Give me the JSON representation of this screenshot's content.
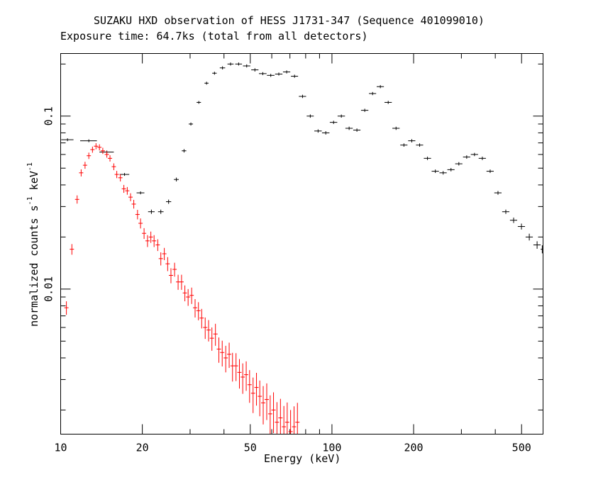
{
  "chart_data": {
    "type": "scatter",
    "title": "SUZAKU HXD observation of HESS J1731-347 (Sequence 401099010)",
    "subtitle": "Exposure time: 64.7ks (total from all detectors)",
    "xlabel": "Energy (keV)",
    "ylabel_parts": [
      "normalized counts s",
      "-1",
      " keV",
      "-1"
    ],
    "xscale": "log",
    "yscale": "log",
    "xlim": [
      10,
      600
    ],
    "ylim": [
      0.00145,
      0.23
    ],
    "x_ticks": [
      10,
      20,
      50,
      100,
      200,
      500
    ],
    "x_tick_labels": [
      "10",
      "20",
      "50",
      "100",
      "200",
      "500"
    ],
    "y_ticks": [
      0.01,
      0.1
    ],
    "y_tick_labels": [
      "0.01",
      "0.1"
    ],
    "grid": false,
    "series": [
      {
        "color": "#000000",
        "x": [
          10.6,
          12.7,
          14.8,
          17.2,
          19.7,
          21.6,
          23.4,
          25.0,
          26.7,
          28.5,
          30.2,
          32.3,
          34.5,
          36.9,
          39.5,
          42.3,
          45.3,
          48.5,
          52.0,
          55.6,
          59.5,
          63.7,
          68.1,
          72.8,
          77.9,
          83.2,
          88.9,
          94.9,
          101.4,
          108.3,
          115.7,
          123.6,
          132.1,
          141.2,
          150.8,
          161.2,
          172.3,
          184.2,
          196.9,
          210.5,
          225.0,
          240.5,
          257.0,
          274.7,
          293.6,
          313.8,
          335.3,
          358.4,
          383.0,
          409.3,
          437.4,
          467.4,
          499.5,
          533.8,
          570.4,
          596.0
        ],
        "y": [
          0.073,
          0.072,
          0.062,
          0.046,
          0.036,
          0.028,
          0.028,
          0.032,
          0.043,
          0.063,
          0.09,
          0.12,
          0.155,
          0.177,
          0.19,
          0.2,
          0.2,
          0.195,
          0.185,
          0.176,
          0.172,
          0.175,
          0.18,
          0.17,
          0.13,
          0.1,
          0.082,
          0.08,
          0.092,
          0.1,
          0.085,
          0.083,
          0.108,
          0.135,
          0.148,
          0.12,
          0.085,
          0.068,
          0.072,
          0.068,
          0.057,
          0.048,
          0.047,
          0.049,
          0.053,
          0.058,
          0.06,
          0.057,
          0.048,
          0.036,
          0.028,
          0.025,
          0.023,
          0.02,
          0.018,
          0.017
        ],
        "xerr_lo": [
          0.55,
          0.9,
          0.9,
          0.7,
          0.65,
          0.6,
          0.55,
          0.55,
          0.55,
          0.55,
          0.55,
          0.6,
          0.6,
          0.7,
          0.9,
          1.1,
          1.3,
          1.5,
          1.6,
          1.8,
          1.9,
          2.0,
          2.1,
          2.2,
          2.4,
          2.5,
          2.8,
          3.0,
          3.2,
          3.4,
          3.6,
          3.8,
          4.1,
          4.3,
          4.6,
          5.0,
          5.3,
          5.6,
          6.0,
          6.4,
          6.9,
          7.4,
          7.9,
          8.4,
          9.0,
          9.6,
          10.3,
          11.0,
          11.8,
          12.6,
          13.4,
          14.3,
          15.3,
          16.4,
          17.5,
          8.0
        ],
        "yerr": [
          0.0008,
          0.0008,
          0.0008,
          0.0008,
          0.0007,
          0.0008,
          0.0008,
          0.0009,
          0.0011,
          0.0014,
          0.0018,
          0.0023,
          0.003,
          0.0035,
          0.004,
          0.004,
          0.004,
          0.004,
          0.004,
          0.0035,
          0.0035,
          0.0035,
          0.0036,
          0.0035,
          0.0028,
          0.0022,
          0.0018,
          0.0018,
          0.002,
          0.0021,
          0.0019,
          0.0018,
          0.0023,
          0.0028,
          0.003,
          0.0025,
          0.0018,
          0.0015,
          0.0016,
          0.0015,
          0.0013,
          0.0011,
          0.0011,
          0.0011,
          0.0012,
          0.0013,
          0.0013,
          0.0013,
          0.0011,
          0.0009,
          0.0008,
          0.0009,
          0.0009,
          0.0009,
          0.0009,
          0.0009
        ]
      },
      {
        "color": "#ff0000",
        "x": [
          10.5,
          11.0,
          11.5,
          11.9,
          12.3,
          12.7,
          13.1,
          13.5,
          13.9,
          14.3,
          14.8,
          15.2,
          15.7,
          16.1,
          16.6,
          17.1,
          17.6,
          18.1,
          18.6,
          19.2,
          19.7,
          20.3,
          20.9,
          21.5,
          22.1,
          22.8,
          23.4,
          24.1,
          24.8,
          25.5,
          26.3,
          27.1,
          27.9,
          28.7,
          29.5,
          30.4,
          31.3,
          32.2,
          33.1,
          34.1,
          35.1,
          36.1,
          37.2,
          38.3,
          39.4,
          40.6,
          41.8,
          43.0,
          44.3,
          45.6,
          46.9,
          48.3,
          49.7,
          51.2,
          52.7,
          54.2,
          55.8,
          57.5,
          59.2,
          60.9,
          62.7,
          64.6,
          66.5,
          68.4,
          70.4,
          72.5,
          74.6
        ],
        "y": [
          0.0078,
          0.017,
          0.033,
          0.047,
          0.052,
          0.059,
          0.064,
          0.067,
          0.066,
          0.063,
          0.06,
          0.057,
          0.051,
          0.046,
          0.044,
          0.038,
          0.037,
          0.034,
          0.031,
          0.027,
          0.024,
          0.021,
          0.019,
          0.02,
          0.019,
          0.018,
          0.015,
          0.016,
          0.014,
          0.012,
          0.013,
          0.011,
          0.011,
          0.0095,
          0.009,
          0.0092,
          0.0078,
          0.0075,
          0.0068,
          0.006,
          0.0058,
          0.0052,
          0.0055,
          0.0045,
          0.0043,
          0.004,
          0.0042,
          0.0036,
          0.0036,
          0.0033,
          0.0031,
          0.0032,
          0.0028,
          0.0025,
          0.0027,
          0.0024,
          0.0022,
          0.0023,
          0.0019,
          0.002,
          0.0017,
          0.0018,
          0.0016,
          0.0017,
          0.0015,
          0.0016,
          0.0017
        ],
        "yerr": [
          0.0007,
          0.0012,
          0.0018,
          0.0022,
          0.0024,
          0.0025,
          0.0026,
          0.0027,
          0.0027,
          0.0026,
          0.0025,
          0.0024,
          0.0023,
          0.0022,
          0.0021,
          0.002,
          0.0019,
          0.0018,
          0.0018,
          0.0017,
          0.0016,
          0.0015,
          0.0015,
          0.0015,
          0.0015,
          0.0014,
          0.0013,
          0.0013,
          0.0013,
          0.0012,
          0.0012,
          0.0011,
          0.0011,
          0.001,
          0.001,
          0.001,
          0.00095,
          0.0009,
          0.00088,
          0.00085,
          0.00082,
          0.0008,
          0.0008,
          0.00075,
          0.00073,
          0.0007,
          0.0007,
          0.00068,
          0.00066,
          0.00064,
          0.00062,
          0.00062,
          0.0006,
          0.00058,
          0.00058,
          0.00056,
          0.00055,
          0.00055,
          0.00053,
          0.00053,
          0.00052,
          0.00052,
          0.00051,
          0.00051,
          0.0005,
          0.0005,
          0.0005
        ]
      }
    ]
  }
}
